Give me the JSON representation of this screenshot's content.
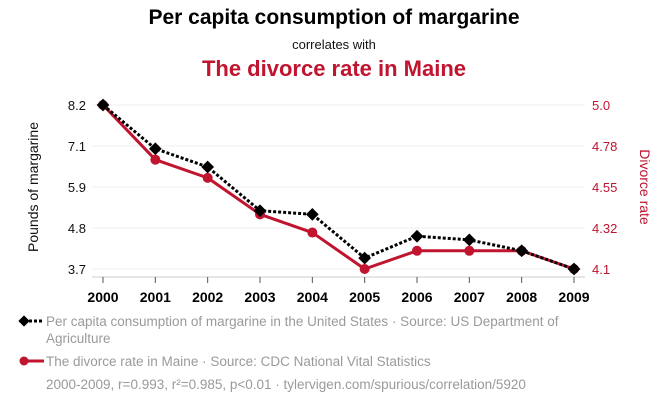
{
  "chart_data": {
    "type": "line",
    "title": "Per capita consumption of margarine",
    "subtitle": "correlates with",
    "title2": "The divorce rate in Maine",
    "categories": [
      "2000",
      "2001",
      "2002",
      "2003",
      "2004",
      "2005",
      "2006",
      "2007",
      "2008",
      "2009"
    ],
    "ylabel_left": "Pounds of margarine",
    "ylabel_right": "Divorce rate",
    "yticks_left": [
      "8.2",
      "7.1",
      "5.9",
      "4.8",
      "3.7"
    ],
    "yticks_right": [
      "5.0",
      "4.78",
      "4.55",
      "4.32",
      "4.1"
    ],
    "ylim_left": [
      3.7,
      8.2
    ],
    "ylim_right": [
      4.1,
      5.0
    ],
    "grid": true,
    "series": [
      {
        "name": "Per capita consumption of margarine in the United States · Source: US Department of Agriculture",
        "axis": "left",
        "color": "#000000",
        "style": "dotted",
        "marker": "diamond",
        "values": [
          8.2,
          7.0,
          6.5,
          5.3,
          5.2,
          4.0,
          4.6,
          4.5,
          4.2,
          3.7
        ]
      },
      {
        "name": "The divorce rate in Maine · Source: CDC National Vital Statistics",
        "axis": "right",
        "color": "#c0142f",
        "style": "solid",
        "marker": "circle",
        "values": [
          5.0,
          4.7,
          4.6,
          4.4,
          4.3,
          4.1,
          4.2,
          4.2,
          4.2,
          4.1
        ]
      }
    ],
    "legend_position": "bottom-left",
    "footer": "2000-2009, r=0.993, r²=0.985, p<0.01 · tylervigen.com/spurious/correlation/5920"
  }
}
